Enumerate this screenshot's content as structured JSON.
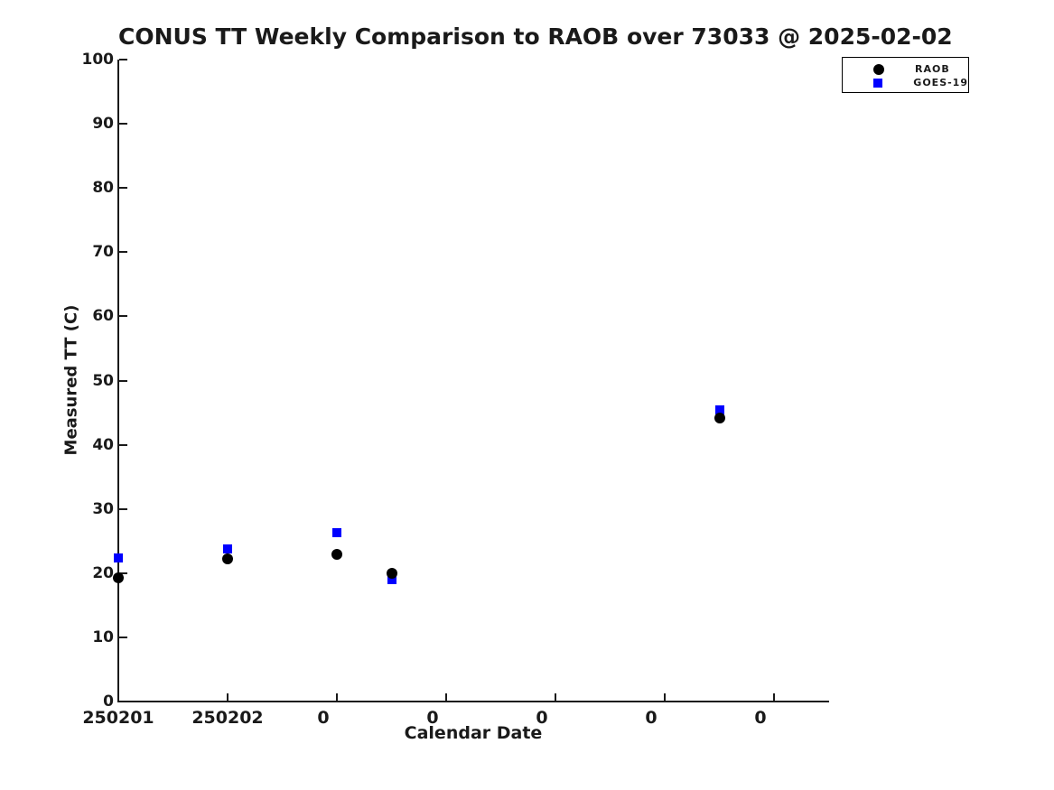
{
  "chart_data": {
    "type": "scatter",
    "title": "CONUS TT Weekly Comparison to RAOB over 73033 @ 2025-02-02",
    "xlabel": "Calendar Date",
    "ylabel": "Measured TT (C)",
    "ylim": [
      0,
      100
    ],
    "y_ticks": [
      0,
      10,
      20,
      30,
      40,
      50,
      60,
      70,
      80,
      90,
      100
    ],
    "x_tick_labels": [
      "250201",
      "250202",
      "0",
      "0",
      "0",
      "0",
      "0"
    ],
    "xlim_tick_units": [
      0,
      6.5
    ],
    "grid": false,
    "legend_position": "upper-right",
    "series": [
      {
        "name": "RAOB",
        "marker": "circle",
        "color": "#000000",
        "x_tick_units": [
          0,
          1,
          2,
          2.5,
          5.5
        ],
        "y": [
          19.3,
          22.2,
          22.9,
          20.0,
          44.1
        ]
      },
      {
        "name": "GOES-19",
        "marker": "square",
        "color": "#0000ff",
        "x_tick_units": [
          0,
          1,
          2,
          2.5,
          5.5
        ],
        "y": [
          22.3,
          23.8,
          26.3,
          19.0,
          45.4
        ]
      }
    ]
  }
}
